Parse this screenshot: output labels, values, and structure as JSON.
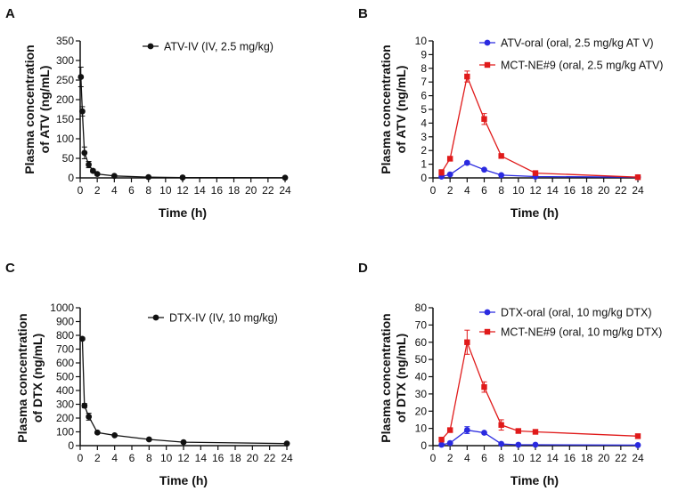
{
  "colors": {
    "black": "#111111",
    "blue": "#2a2ae0",
    "red": "#e01a1a"
  },
  "chart_data": [
    {
      "panel": "A",
      "type": "line",
      "ylabel": [
        "Plasma concentration",
        "of ATV (ng/mL)"
      ],
      "xlabel": "Time (h)",
      "xlim": [
        0,
        24
      ],
      "xticks": [
        0,
        2,
        4,
        6,
        8,
        10,
        12,
        14,
        16,
        18,
        20,
        22,
        24
      ],
      "ylim": [
        0,
        350
      ],
      "yticks": [
        0,
        50,
        100,
        150,
        200,
        250,
        300,
        350
      ],
      "legend_position": "top-right",
      "series": [
        {
          "name": "ATV-IV (IV, 2.5 mg/kg)",
          "color": "black",
          "marker": "circle",
          "x": [
            0.083,
            0.25,
            0.5,
            1,
            1.5,
            2,
            4,
            8,
            12,
            24
          ],
          "y": [
            258,
            170,
            64,
            34,
            18,
            10,
            5,
            2,
            1,
            0.5
          ],
          "err": [
            25,
            12,
            15,
            8,
            4,
            2,
            1,
            0,
            0,
            0
          ]
        }
      ]
    },
    {
      "panel": "B",
      "type": "line",
      "ylabel": [
        "Plasma concentration",
        "of ATV (ng/mL)"
      ],
      "xlabel": "Time (h)",
      "xlim": [
        0,
        24
      ],
      "xticks": [
        0,
        2,
        4,
        6,
        8,
        10,
        12,
        14,
        16,
        18,
        20,
        22,
        24
      ],
      "ylim": [
        0,
        10
      ],
      "yticks": [
        0,
        1,
        2,
        3,
        4,
        5,
        6,
        7,
        8,
        9,
        10
      ],
      "legend_position": "top-right",
      "series": [
        {
          "name": "ATV-oral (oral, 2.5 mg/kg AT V)",
          "color": "blue",
          "marker": "circle",
          "x": [
            1,
            2,
            4,
            6,
            8,
            12,
            24
          ],
          "y": [
            0.1,
            0.25,
            1.1,
            0.6,
            0.2,
            0.1,
            0.05
          ],
          "err": [
            0,
            0.05,
            0.1,
            0.05,
            0.05,
            0,
            0
          ]
        },
        {
          "name": "MCT-NE#9 (oral, 2.5 mg/kg ATV)",
          "color": "red",
          "marker": "square",
          "x": [
            1,
            2,
            4,
            6,
            8,
            12,
            24
          ],
          "y": [
            0.4,
            1.4,
            7.4,
            4.3,
            1.6,
            0.35,
            0.05
          ],
          "err": [
            0.2,
            0.15,
            0.4,
            0.4,
            0.1,
            0.05,
            0
          ]
        }
      ]
    },
    {
      "panel": "C",
      "type": "line",
      "ylabel": [
        "Plasma concentration",
        "of DTX (ng/mL)"
      ],
      "xlabel": "Time (h)",
      "xlim": [
        0,
        24
      ],
      "xticks": [
        0,
        2,
        4,
        6,
        8,
        10,
        12,
        14,
        16,
        18,
        20,
        22,
        24
      ],
      "ylim": [
        0,
        1000
      ],
      "yticks": [
        0,
        100,
        200,
        300,
        400,
        500,
        600,
        700,
        800,
        900,
        1000
      ],
      "legend_position": "top-right",
      "series": [
        {
          "name": "DTX-IV (IV, 10 mg/kg)",
          "color": "black",
          "marker": "circle",
          "x": [
            0.25,
            0.5,
            1,
            2,
            4,
            8,
            12,
            24
          ],
          "y": [
            775,
            290,
            210,
            95,
            75,
            45,
            25,
            15
          ],
          "err": [
            10,
            15,
            25,
            8,
            5,
            5,
            5,
            3
          ]
        }
      ]
    },
    {
      "panel": "D",
      "type": "line",
      "ylabel": [
        "Plasma concentration",
        "of DTX (ng/mL)"
      ],
      "xlabel": "Time (h)",
      "xlim": [
        0,
        24
      ],
      "xticks": [
        0,
        2,
        4,
        6,
        8,
        10,
        12,
        14,
        16,
        18,
        20,
        22,
        24
      ],
      "ylim": [
        0,
        80
      ],
      "yticks": [
        0,
        10,
        20,
        30,
        40,
        50,
        60,
        70,
        80
      ],
      "legend_position": "top-right",
      "series": [
        {
          "name": "DTX-oral (oral, 10 mg/kg DTX)",
          "color": "blue",
          "marker": "circle",
          "x": [
            1,
            2,
            4,
            6,
            8,
            10,
            12,
            24
          ],
          "y": [
            0.5,
            1.5,
            9,
            7.5,
            1,
            0.5,
            0.5,
            0.3
          ],
          "err": [
            0,
            0.3,
            2,
            0.5,
            0.5,
            0,
            0,
            0
          ]
        },
        {
          "name": "MCT-NE#9 (oral, 10 mg/kg DTX)",
          "color": "red",
          "marker": "square",
          "x": [
            1,
            2,
            4,
            6,
            8,
            10,
            12,
            24
          ],
          "y": [
            3.5,
            9,
            60,
            34,
            12,
            8.5,
            8,
            5.5
          ],
          "err": [
            0.5,
            1,
            7,
            3,
            3,
            1,
            0.5,
            1
          ]
        }
      ]
    }
  ]
}
